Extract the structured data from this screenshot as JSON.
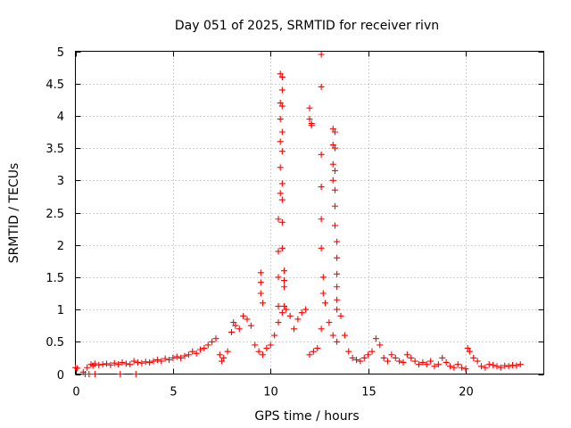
{
  "chart_data": {
    "type": "scatter",
    "title": "Day 051 of 2025, SRMTID for receiver rivn",
    "xlabel": "GPS time / hours",
    "ylabel": "SRMTID / TECUs",
    "xlim": [
      0,
      24
    ],
    "ylim": [
      0,
      5
    ],
    "xticks": [
      0,
      5,
      10,
      15,
      20
    ],
    "xtick_labels": [
      "0",
      "5",
      "10",
      "15",
      "20"
    ],
    "yticks": [
      0,
      0.5,
      1,
      1.5,
      2,
      2.5,
      3,
      3.5,
      4,
      4.5,
      5
    ],
    "ytick_labels": [
      "0",
      "0.5",
      "1",
      "1.5",
      "2",
      "2.5",
      "3",
      "3.5",
      "4",
      "4.5",
      "5"
    ],
    "grid": true,
    "marker": "+",
    "series": [
      {
        "name": "SRMTID",
        "color": "#ff0000",
        "x": [
          0.0,
          0.1,
          0.4,
          0.6,
          0.8,
          0.9,
          1.0,
          1.2,
          1.4,
          1.6,
          1.8,
          2.0,
          2.2,
          2.4,
          2.6,
          2.8,
          3.0,
          3.2,
          3.4,
          3.6,
          3.8,
          4.0,
          4.2,
          4.4,
          4.6,
          4.8,
          5.0,
          5.2,
          5.4,
          5.6,
          5.8,
          6.0,
          6.2,
          6.4,
          6.6,
          6.8,
          7.0,
          7.2,
          7.4,
          7.5,
          7.6,
          7.8,
          8.0,
          8.1,
          8.2,
          8.4,
          8.6,
          8.8,
          9.0,
          9.2,
          9.4,
          9.6,
          9.8,
          10.0,
          10.2,
          10.4,
          10.6,
          10.8,
          11.0,
          11.2,
          11.4,
          11.6,
          11.8,
          12.0,
          12.2,
          12.4,
          12.6,
          12.8,
          13.0,
          13.2,
          13.4,
          13.6,
          13.8,
          14.0,
          14.2,
          14.4,
          14.6,
          14.8,
          15.0,
          15.2,
          15.4,
          15.6,
          15.8,
          16.0,
          16.2,
          16.4,
          16.6,
          16.8,
          17.0,
          17.2,
          17.4,
          17.6,
          17.8,
          18.0,
          18.2,
          18.4,
          18.6,
          18.8,
          19.0,
          19.2,
          19.4,
          19.6,
          19.8,
          20.0,
          20.1,
          20.2,
          20.4,
          20.6,
          20.8,
          21.0,
          21.2,
          21.4,
          21.6,
          21.8,
          22.0,
          22.2,
          22.4,
          22.6,
          22.8,
          9.5,
          9.5,
          9.5,
          9.6,
          10.4,
          10.4,
          10.4,
          10.4,
          10.5,
          10.5,
          10.5,
          10.5,
          10.5,
          10.5,
          10.6,
          10.6,
          10.6,
          10.6,
          10.6,
          10.6,
          10.6,
          10.6,
          10.6,
          10.7,
          10.7,
          10.7,
          10.7,
          12.0,
          12.0,
          12.1,
          12.1,
          12.6,
          12.6,
          12.6,
          12.6,
          12.6,
          12.6,
          12.7,
          12.7,
          13.2,
          13.2,
          13.2,
          13.2,
          13.3,
          13.3,
          13.3,
          13.3,
          13.3,
          13.3,
          13.4,
          13.4,
          13.4,
          13.4,
          13.4,
          13.4,
          0.5,
          0.7,
          1.0,
          2.3,
          3.1
        ],
        "y": [
          0.1,
          0.09,
          0.03,
          0.1,
          0.15,
          0.13,
          0.16,
          0.14,
          0.15,
          0.16,
          0.14,
          0.17,
          0.15,
          0.18,
          0.16,
          0.15,
          0.2,
          0.18,
          0.17,
          0.19,
          0.18,
          0.2,
          0.22,
          0.2,
          0.24,
          0.22,
          0.25,
          0.27,
          0.25,
          0.28,
          0.3,
          0.35,
          0.32,
          0.38,
          0.4,
          0.45,
          0.5,
          0.55,
          0.3,
          0.2,
          0.25,
          0.35,
          0.65,
          0.8,
          0.75,
          0.7,
          0.9,
          0.85,
          0.75,
          0.45,
          0.35,
          0.3,
          0.4,
          0.45,
          0.6,
          0.8,
          0.95,
          1.0,
          0.9,
          0.7,
          0.85,
          0.95,
          1.0,
          0.3,
          0.35,
          0.4,
          0.7,
          1.1,
          0.8,
          0.6,
          0.5,
          0.9,
          0.6,
          0.35,
          0.25,
          0.22,
          0.2,
          0.25,
          0.3,
          0.35,
          0.55,
          0.45,
          0.25,
          0.2,
          0.3,
          0.25,
          0.2,
          0.18,
          0.3,
          0.25,
          0.2,
          0.15,
          0.18,
          0.15,
          0.2,
          0.12,
          0.15,
          0.25,
          0.18,
          0.12,
          0.1,
          0.15,
          0.1,
          0.08,
          0.4,
          0.35,
          0.25,
          0.2,
          0.12,
          0.1,
          0.15,
          0.14,
          0.12,
          0.1,
          0.13,
          0.12,
          0.14,
          0.13,
          0.15,
          1.57,
          1.42,
          1.25,
          1.1,
          1.05,
          1.5,
          1.9,
          2.4,
          2.8,
          3.2,
          3.6,
          3.95,
          4.2,
          4.65,
          4.6,
          4.4,
          4.15,
          3.75,
          3.45,
          2.95,
          2.7,
          2.35,
          1.95,
          1.6,
          1.45,
          1.35,
          1.05,
          4.12,
          3.95,
          3.88,
          3.85,
          4.95,
          4.45,
          3.4,
          2.9,
          2.4,
          1.95,
          1.5,
          1.25,
          3.8,
          3.55,
          3.25,
          3.0,
          3.75,
          3.5,
          3.15,
          2.85,
          2.6,
          2.3,
          2.05,
          1.8,
          1.55,
          1.35,
          1.15,
          1.0,
          0.0,
          0.0,
          0.0,
          0.0,
          0.0
        ]
      }
    ]
  }
}
